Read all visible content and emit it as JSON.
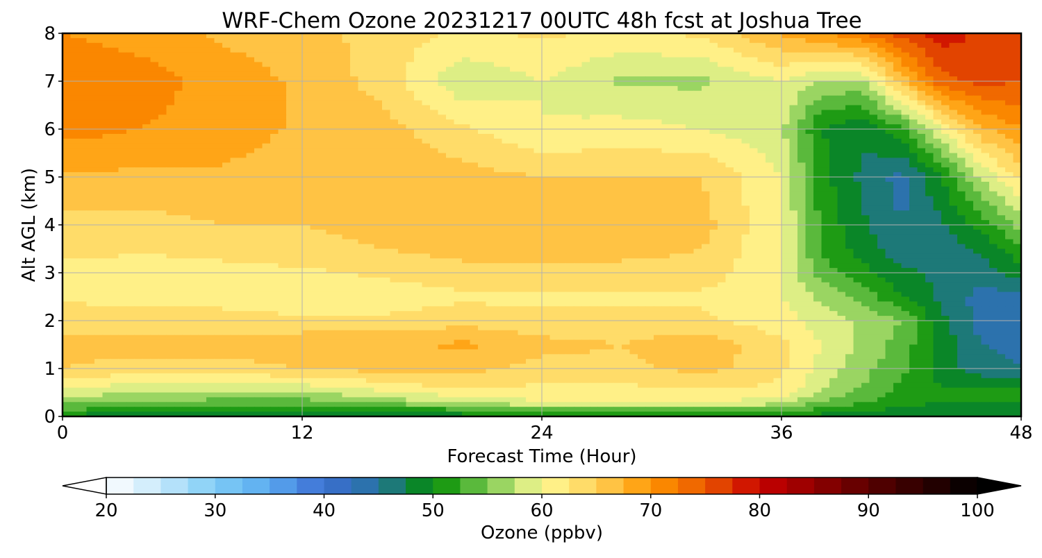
{
  "chart_data": {
    "type": "heatmap",
    "title": "WRF-Chem Ozone  20231217 00UTC 48h fcst at Joshua Tree",
    "xlabel": "Forecast Time (Hour)",
    "ylabel": "Alt AGL (km)",
    "xlim": [
      0,
      48
    ],
    "ylim": [
      0,
      8
    ],
    "x_ticks": [
      "0",
      "12",
      "24",
      "36",
      "48"
    ],
    "y_ticks": [
      "0",
      "1",
      "2",
      "3",
      "4",
      "5",
      "6",
      "7",
      "8"
    ],
    "grid": true,
    "hours": [
      0,
      4,
      8,
      12,
      16,
      20,
      24,
      28,
      32,
      36,
      38,
      40,
      42,
      44,
      46,
      48
    ],
    "alts": [
      0,
      0.1,
      0.3,
      0.6,
      1,
      1.5,
      2,
      2.5,
      3,
      3.5,
      4,
      5,
      6,
      7,
      8
    ],
    "ozone_ppbv": [
      [
        49,
        48,
        48,
        47,
        48,
        49,
        50,
        51,
        51,
        50,
        49,
        48,
        48,
        48,
        48,
        48
      ],
      [
        52,
        50,
        49,
        49,
        50,
        51,
        53,
        53,
        53,
        52,
        51,
        50,
        49,
        49,
        49,
        49
      ],
      [
        56,
        55,
        54,
        54,
        56,
        58,
        60,
        60,
        60,
        59,
        55,
        53,
        51,
        50,
        50,
        50
      ],
      [
        60,
        59,
        59,
        59,
        61,
        63,
        62,
        62,
        63,
        62,
        58,
        55,
        52,
        50,
        50,
        50
      ],
      [
        65,
        64,
        64,
        65,
        66,
        66,
        64,
        64,
        66,
        63,
        59,
        56,
        53,
        49,
        46,
        45
      ],
      [
        66,
        66,
        66,
        67,
        67,
        68,
        66,
        65,
        67,
        63,
        60,
        57,
        54,
        49,
        45,
        44
      ],
      [
        64,
        63,
        63,
        63,
        63,
        64,
        63,
        63,
        63,
        61,
        59,
        57,
        55,
        48,
        44,
        43
      ],
      [
        62,
        62,
        62,
        61,
        61,
        62,
        62,
        62,
        62,
        60,
        57,
        54,
        50,
        47,
        44,
        44
      ],
      [
        62,
        61,
        62,
        62,
        63,
        64,
        64,
        64,
        64,
        60,
        54,
        51,
        48,
        47,
        46,
        49
      ],
      [
        63,
        63,
        63,
        64,
        65,
        66,
        66,
        66,
        65,
        60,
        52,
        49,
        46,
        46,
        48,
        52
      ],
      [
        64,
        64,
        65,
        65,
        66,
        66,
        66,
        67,
        66,
        60,
        52,
        48,
        45,
        47,
        51,
        56
      ],
      [
        67,
        67,
        67,
        66,
        67,
        66,
        65,
        65,
        65,
        60,
        51,
        47,
        44,
        50,
        58,
        63
      ],
      [
        71,
        70,
        69,
        67,
        66,
        63,
        60,
        61,
        60,
        58,
        50,
        48,
        52,
        60,
        67,
        70
      ],
      [
        72,
        71,
        69,
        67,
        64,
        58,
        60,
        57,
        57,
        60,
        57,
        57,
        66,
        74,
        76,
        75
      ],
      [
        70,
        69,
        67,
        66,
        64,
        62,
        63,
        62,
        63,
        68,
        70,
        72,
        76,
        79,
        77,
        76
      ]
    ],
    "colorbar": {
      "label": "Ozone  (ppbv)",
      "min": 20,
      "max": 100,
      "ticks": [
        "20",
        "30",
        "40",
        "50",
        "60",
        "70",
        "80",
        "90",
        "100"
      ],
      "extend": "both",
      "stops": [
        {
          "v": 20,
          "c": "#ffffff"
        },
        {
          "v": 25,
          "c": "#c6e8fb"
        },
        {
          "v": 30,
          "c": "#7fcdf5"
        },
        {
          "v": 35,
          "c": "#5aaaf0"
        },
        {
          "v": 40,
          "c": "#3c6ed2"
        },
        {
          "v": 45,
          "c": "#2673a0"
        },
        {
          "v": 50,
          "c": "#008c00"
        },
        {
          "v": 55,
          "c": "#78c850"
        },
        {
          "v": 60,
          "c": "#fffa96"
        },
        {
          "v": 65,
          "c": "#ffd25a"
        },
        {
          "v": 70,
          "c": "#ff9600"
        },
        {
          "v": 75,
          "c": "#eb5a00"
        },
        {
          "v": 80,
          "c": "#c80000"
        },
        {
          "v": 90,
          "c": "#5a0000"
        },
        {
          "v": 100,
          "c": "#000000"
        }
      ]
    }
  }
}
